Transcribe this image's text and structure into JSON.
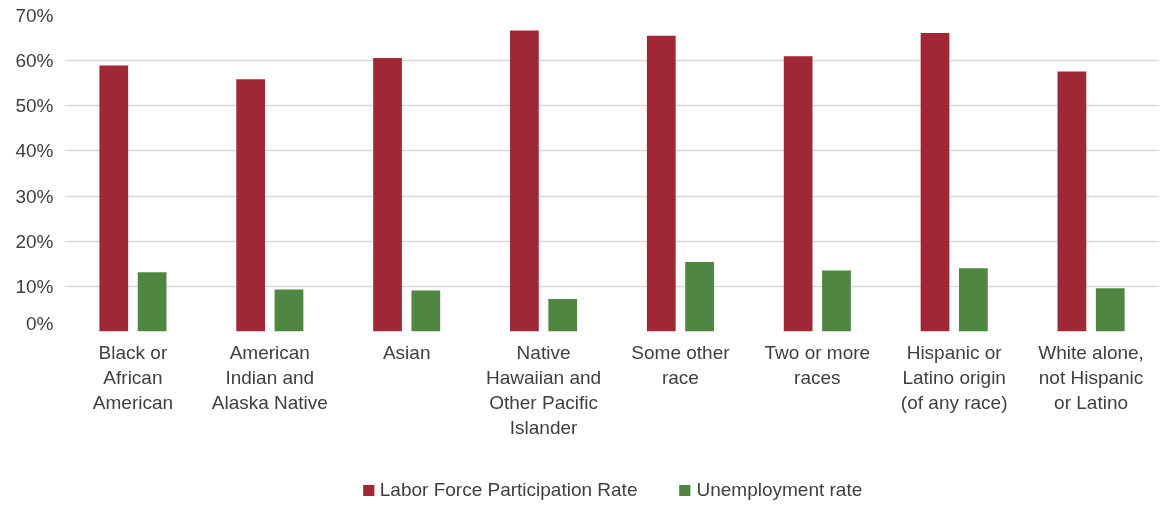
{
  "chart_data": {
    "type": "bar",
    "categories": [
      "Black or African American",
      "American Indian and Alaska Native",
      "Asian",
      "Native Hawaiian and Other Pacific Islander",
      "Some other race",
      "Two or more races",
      "Hispanic or Latino origin (of any race)",
      "White alone, not Hispanic or Latino"
    ],
    "series": [
      {
        "name": "Labor Force Participation Rate",
        "color": "#a02736",
        "values": [
          58.9,
          55.9,
          60.6,
          66.7,
          65.5,
          61.0,
          66.1,
          57.6
        ]
      },
      {
        "name": "Unemployment rate",
        "color": "#4f8641",
        "values": [
          13.1,
          9.3,
          9.1,
          7.2,
          15.4,
          13.5,
          14.0,
          9.6
        ]
      }
    ],
    "ylim": [
      0,
      70
    ],
    "yticks": [
      {
        "value": 0,
        "label": "0%"
      },
      {
        "value": 10,
        "label": "10%"
      },
      {
        "value": 20,
        "label": "20%"
      },
      {
        "value": 30,
        "label": "30%"
      },
      {
        "value": 40,
        "label": "40%"
      },
      {
        "value": 50,
        "label": "50%"
      },
      {
        "value": 60,
        "label": "60%"
      },
      {
        "value": 70,
        "label": "70%"
      }
    ],
    "grid": "y",
    "legend": "bottom"
  }
}
